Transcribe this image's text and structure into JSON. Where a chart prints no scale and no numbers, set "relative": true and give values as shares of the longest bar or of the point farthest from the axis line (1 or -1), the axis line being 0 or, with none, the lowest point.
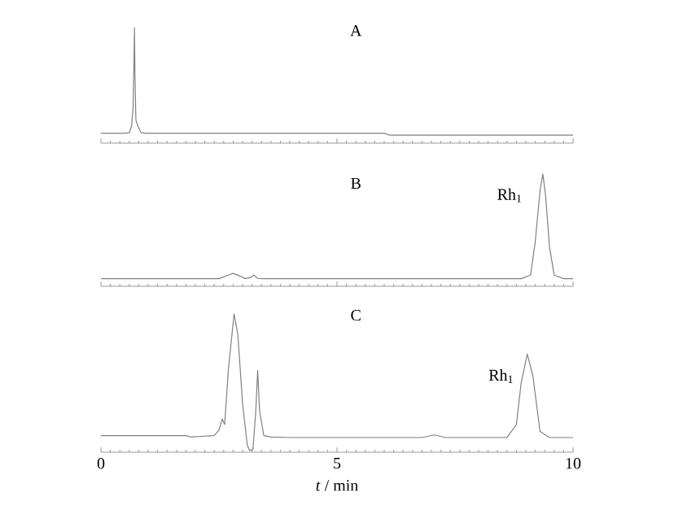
{
  "chart_data": [
    {
      "type": "line",
      "title": "A",
      "relative": true,
      "xlim": [
        0,
        10
      ],
      "xticks": [
        0,
        5,
        10
      ],
      "tick_labels": false,
      "series": [
        {
          "color": "#808080",
          "x": [
            0,
            0.5,
            0.6,
            0.65,
            0.68,
            0.7,
            0.71,
            0.72,
            0.74,
            0.78,
            0.85,
            0.95,
            6.0,
            6.1,
            10
          ],
          "values": [
            0.085,
            0.085,
            0.09,
            0.15,
            0.3,
            0.7,
            1.0,
            0.6,
            0.2,
            0.15,
            0.09,
            0.085,
            0.085,
            0.07,
            0.07
          ]
        }
      ]
    },
    {
      "type": "line",
      "title": "B",
      "relative": true,
      "xlim": [
        0,
        10
      ],
      "xticks": [
        0,
        5,
        10
      ],
      "tick_labels": false,
      "annotations": [
        "Rh$_{1}$"
      ],
      "series": [
        {
          "color": "#808080",
          "x": [
            0,
            2.5,
            2.7,
            2.8,
            2.95,
            3.05,
            3.15,
            3.24,
            3.32,
            3.45,
            8.9,
            9.1,
            9.2,
            9.3,
            9.36,
            9.42,
            9.5,
            9.6,
            9.8,
            10
          ],
          "values": [
            0.068,
            0.068,
            0.1,
            0.115,
            0.09,
            0.07,
            0.075,
            0.1,
            0.07,
            0.068,
            0.068,
            0.1,
            0.4,
            0.85,
            1.0,
            0.8,
            0.35,
            0.1,
            0.068,
            0.068
          ]
        }
      ]
    },
    {
      "type": "line",
      "title": "C",
      "relative": true,
      "xlim": [
        0,
        10
      ],
      "xticks": [
        0,
        5,
        10
      ],
      "tick_labels": "x",
      "xlabel": "*t* / min",
      "annotations": [
        "Rh$_{1}$"
      ],
      "series": [
        {
          "color": "#808080",
          "x": [
            0,
            1.8,
            1.9,
            2.4,
            2.5,
            2.57,
            2.62,
            2.7,
            2.82,
            2.9,
            3.0,
            3.1,
            3.15,
            3.22,
            3.28,
            3.32,
            3.36,
            3.45,
            3.6,
            4.0,
            6.8,
            7.06,
            7.3,
            8.6,
            8.8,
            8.9,
            9.03,
            9.15,
            9.3,
            9.5,
            10
          ],
          "values": [
            0.12,
            0.12,
            0.11,
            0.12,
            0.16,
            0.24,
            0.2,
            0.6,
            1.0,
            0.85,
            0.35,
            0.05,
            0.012,
            0.02,
            0.3,
            0.59,
            0.3,
            0.12,
            0.11,
            0.106,
            0.106,
            0.125,
            0.106,
            0.106,
            0.2,
            0.5,
            0.71,
            0.55,
            0.15,
            0.106,
            0.106
          ]
        }
      ]
    }
  ]
}
